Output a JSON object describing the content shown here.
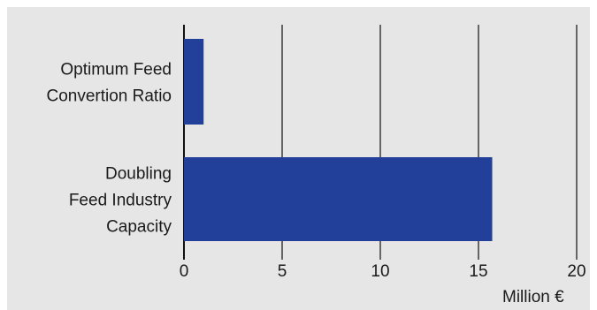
{
  "chart_data": {
    "type": "bar",
    "orientation": "horizontal",
    "categories": [
      [
        "Optimum Feed",
        "Convertion Ratio"
      ],
      [
        "Doubling",
        "Feed Industry",
        "Capacity"
      ]
    ],
    "values": [
      1.0,
      15.7
    ],
    "x_ticks": [
      "0",
      "5",
      "10",
      "15",
      "20"
    ],
    "xlim": [
      0,
      20
    ],
    "unit_label": "Million €",
    "grid": "vertical",
    "colors": {
      "bar": "#22409a",
      "plot_background": "#e6e6e6",
      "gridline": "#3a3a3a"
    }
  }
}
